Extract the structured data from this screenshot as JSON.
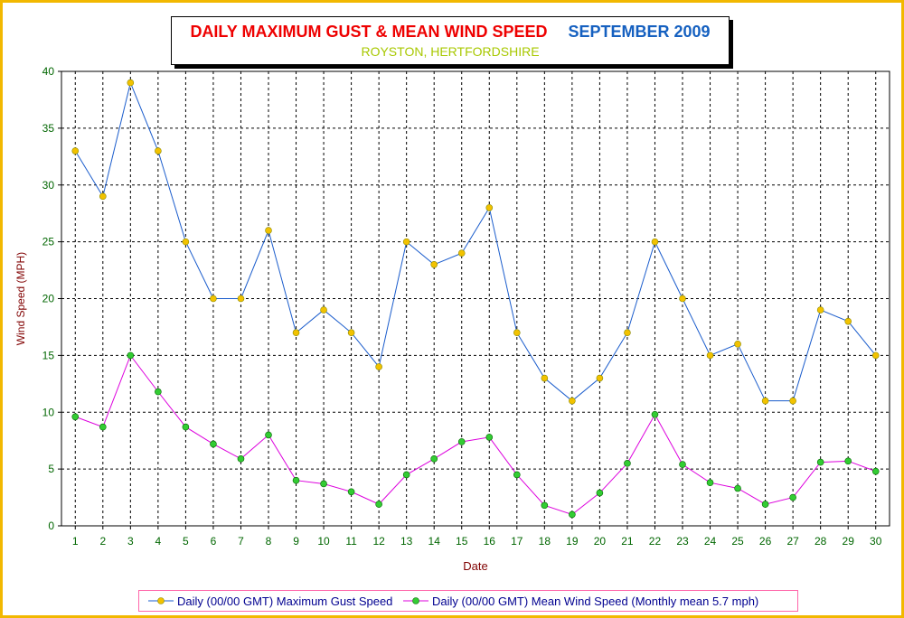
{
  "title": {
    "main": "DAILY MAXIMUM GUST & MEAN WIND SPEED",
    "month": "SEPTEMBER 2009",
    "subtitle": "ROYSTON, HERTFORDSHIRE"
  },
  "colors": {
    "frame": "#f2b800",
    "title_main": "#ee0000",
    "title_month": "#1560c0",
    "subtitle": "#a8c800",
    "axis_text": "#006600",
    "axis_label": "#800000",
    "legend_border": "#ff66aa",
    "legend_text": "#000090"
  },
  "chart_data": {
    "type": "line",
    "xlabel": "Date",
    "ylabel": "Wind Speed (MPH)",
    "ylim": [
      0,
      40
    ],
    "yticks": [
      0,
      5,
      10,
      15,
      20,
      25,
      30,
      35,
      40
    ],
    "grid": true,
    "legend_placement": "bottom",
    "x": [
      1,
      2,
      3,
      4,
      5,
      6,
      7,
      8,
      9,
      10,
      11,
      12,
      13,
      14,
      15,
      16,
      17,
      18,
      19,
      20,
      21,
      22,
      23,
      24,
      25,
      26,
      27,
      28,
      29,
      30
    ],
    "series": [
      {
        "name": "Daily (00/00 GMT) Maximum Gust Speed",
        "line_color": "#1a5ccc",
        "marker_color": "#f2c200",
        "values": [
          33,
          29,
          39,
          33,
          25,
          20,
          20,
          26,
          17,
          19,
          17,
          14,
          25,
          23,
          24,
          28,
          17,
          13,
          11,
          13,
          17,
          25,
          20,
          15,
          16,
          11,
          11,
          19,
          18,
          15
        ]
      },
      {
        "name": "Daily (00/00 GMT) Mean Wind Speed (Monthly mean 5.7 mph)",
        "line_color": "#dd00dd",
        "marker_color": "#33cc33",
        "values": [
          9.6,
          8.7,
          15,
          11.8,
          8.7,
          7.2,
          5.9,
          8.0,
          4.0,
          3.7,
          3.0,
          1.9,
          4.5,
          5.9,
          7.4,
          7.8,
          4.5,
          1.8,
          1.0,
          2.9,
          5.5,
          9.8,
          5.4,
          3.8,
          3.3,
          1.9,
          2.5,
          5.6,
          5.7,
          4.8
        ]
      }
    ]
  }
}
